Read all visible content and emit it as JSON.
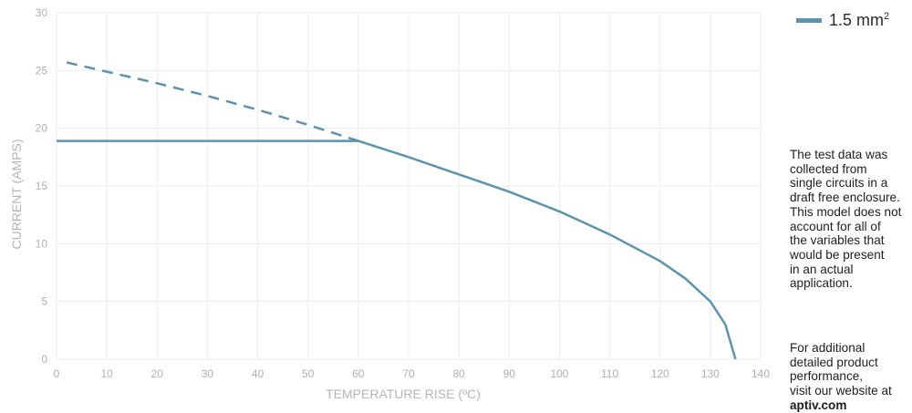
{
  "chart_data": {
    "type": "line",
    "xlabel": "TEMPERATURE RISE (ºC)",
    "ylabel": "CURRENT (AMPS)",
    "xlim": [
      0,
      140
    ],
    "ylim": [
      0,
      30
    ],
    "x_ticks": [
      "0",
      "10",
      "20",
      "30",
      "40",
      "50",
      "60",
      "70",
      "80",
      "90",
      "100",
      "110",
      "120",
      "130",
      "140"
    ],
    "y_ticks": [
      "0",
      "5",
      "10",
      "15",
      "20",
      "25",
      "30"
    ],
    "grid": true,
    "legend_position": "top-right",
    "series": [
      {
        "name": "1.5 mm²",
        "color": "#5b93b0",
        "segments": [
          {
            "style": "dashed",
            "points": [
              [
                2,
                25.7
              ],
              [
                10,
                24.9
              ],
              [
                20,
                23.9
              ],
              [
                30,
                22.8
              ],
              [
                40,
                21.6
              ],
              [
                50,
                20.3
              ],
              [
                60,
                18.9
              ]
            ]
          },
          {
            "style": "solid",
            "points": [
              [
                0,
                18.9
              ],
              [
                60,
                18.9
              ]
            ]
          },
          {
            "style": "solid",
            "points": [
              [
                60,
                18.9
              ],
              [
                70,
                17.5
              ],
              [
                80,
                16.0
              ],
              [
                90,
                14.5
              ],
              [
                100,
                12.8
              ],
              [
                110,
                10.8
              ],
              [
                120,
                8.5
              ],
              [
                125,
                7.0
              ],
              [
                130,
                5.0
              ],
              [
                133,
                3.0
              ],
              [
                135,
                0
              ]
            ]
          }
        ]
      }
    ]
  },
  "legend": {
    "label": "1.5 mm",
    "superscript": "2"
  },
  "note": {
    "paragraph1": [
      "The test data was",
      "collected from",
      "single circuits in a",
      "draft free enclosure.",
      "This model does not",
      "account for all of",
      "the variables that",
      "would be present",
      "in an actual",
      "application."
    ],
    "paragraph2": [
      "For additional",
      "detailed product",
      "performance,",
      "visit our website at"
    ],
    "link": "aptiv.com"
  }
}
